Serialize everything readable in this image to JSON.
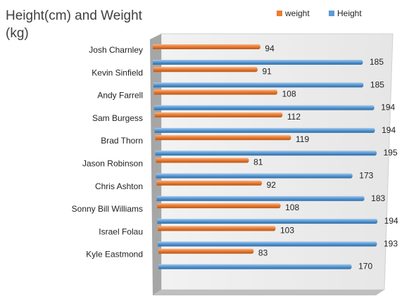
{
  "chart_data": {
    "type": "bar",
    "orientation": "horizontal",
    "title_lines": [
      "Height(cm) and Weight",
      "(kg)"
    ],
    "categories": [
      "Josh Charnley",
      "Kevin Sinfield",
      "Andy Farrell",
      "Sam Burgess",
      "Brad Thorn",
      "Jason Robinson",
      "Chris Ashton",
      "Sonny Bill Williams",
      "Israel Folau",
      "Kyle Eastmond"
    ],
    "series": [
      {
        "name": "weight",
        "values": [
          94,
          91,
          108,
          112,
          119,
          81,
          92,
          108,
          103,
          83
        ]
      },
      {
        "name": "Height",
        "values": [
          185,
          185,
          194,
          194,
          195,
          173,
          183,
          194,
          193,
          170
        ]
      }
    ],
    "xlim": [
      0,
      200
    ],
    "grid": false,
    "legend_position": "top-right",
    "style_3d": true
  },
  "colors": {
    "weight": "#ED7D31",
    "Height": "#5B9BD5",
    "wall": "#D9D9D9",
    "wall_dark": "#A6A6A6"
  }
}
